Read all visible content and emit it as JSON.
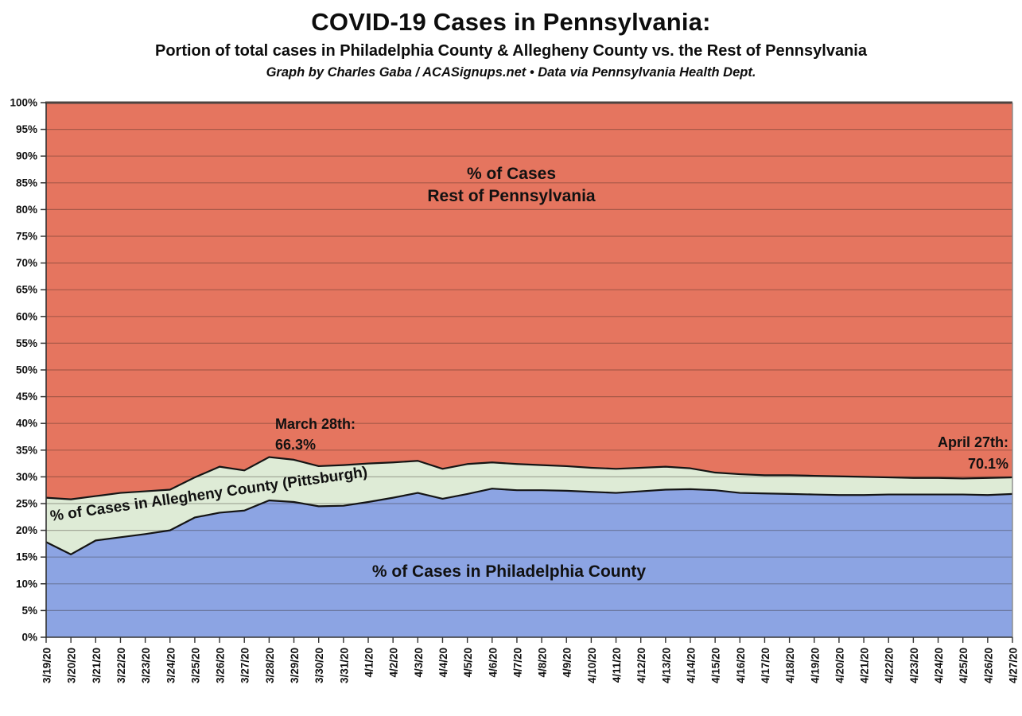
{
  "header": {
    "title": "COVID-19 Cases in Pennsylvania:",
    "subtitle": "Portion of total cases in Philadelphia County & Allegheny County vs. the Rest of Pennsylvania",
    "credit": "Graph by Charles Gaba / ACASignups.net  •  Data via Pennsylvania Health Dept."
  },
  "chart_data": {
    "type": "area",
    "stacked": true,
    "grid": true,
    "legend_position": "none (series labeled inside areas)",
    "ylim": [
      0,
      100
    ],
    "y_tick_step": 5,
    "y_tick_labels": [
      "0%",
      "5%",
      "10%",
      "15%",
      "20%",
      "25%",
      "30%",
      "35%",
      "40%",
      "45%",
      "50%",
      "55%",
      "60%",
      "65%",
      "70%",
      "75%",
      "80%",
      "85%",
      "90%",
      "95%",
      "100%"
    ],
    "x_tick_rotation": -90,
    "x": [
      "3/19/20",
      "3/20/20",
      "3/21/20",
      "3/22/20",
      "3/23/20",
      "3/24/20",
      "3/25/20",
      "3/26/20",
      "3/27/20",
      "3/28/20",
      "3/29/20",
      "3/30/20",
      "3/31/20",
      "4/1/20",
      "4/2/20",
      "4/3/20",
      "4/4/20",
      "4/5/20",
      "4/6/20",
      "4/7/20",
      "4/8/20",
      "4/9/20",
      "4/10/20",
      "4/11/20",
      "4/12/20",
      "4/13/20",
      "4/14/20",
      "4/15/20",
      "4/16/20",
      "4/17/20",
      "4/18/20",
      "4/19/20",
      "4/20/20",
      "4/21/20",
      "4/22/20",
      "4/23/20",
      "4/24/20",
      "4/25/20",
      "4/26/20",
      "4/27/20"
    ],
    "series": [
      {
        "name": "% of Cases in Philadelphia County",
        "color": "#8CA4E3",
        "values": [
          17.8,
          15.5,
          18.1,
          18.7,
          19.3,
          20.0,
          22.4,
          23.3,
          23.7,
          25.6,
          25.3,
          24.5,
          24.6,
          25.3,
          26.1,
          27.0,
          25.9,
          26.8,
          27.8,
          27.5,
          27.5,
          27.4,
          27.2,
          27.0,
          27.3,
          27.6,
          27.7,
          27.5,
          27.0,
          26.9,
          26.8,
          26.7,
          26.6,
          26.6,
          26.7,
          26.7,
          26.7,
          26.7,
          26.6,
          26.8
        ]
      },
      {
        "name": "% of Cases in Allegheny County (Pittsburgh)",
        "color": "#DEEBD6",
        "values": [
          8.3,
          10.3,
          8.3,
          8.3,
          8.0,
          7.6,
          7.5,
          8.6,
          7.5,
          8.1,
          7.9,
          7.5,
          7.6,
          7.2,
          6.6,
          6.0,
          5.6,
          5.6,
          4.9,
          4.9,
          4.7,
          4.6,
          4.5,
          4.5,
          4.4,
          4.3,
          3.9,
          3.3,
          3.5,
          3.4,
          3.5,
          3.5,
          3.5,
          3.4,
          3.2,
          3.1,
          3.1,
          3.0,
          3.2,
          3.1
        ]
      },
      {
        "name": "% of Cases Rest of Pennsylvania",
        "color": "#E5755F",
        "values": [
          73.9,
          74.2,
          73.6,
          73.0,
          72.7,
          72.4,
          70.1,
          68.1,
          68.8,
          66.3,
          66.8,
          68.0,
          67.8,
          67.5,
          67.3,
          67.0,
          68.5,
          67.6,
          67.3,
          67.6,
          67.8,
          68.0,
          68.3,
          68.5,
          68.3,
          68.1,
          68.4,
          69.2,
          69.5,
          69.7,
          69.7,
          69.8,
          69.9,
          70.0,
          70.1,
          70.2,
          70.2,
          70.3,
          70.2,
          70.1
        ]
      }
    ],
    "boundary_line_color": "#141414",
    "annotations": [
      {
        "id": "march-28",
        "line1": "March 28th:",
        "line2": "66.3%",
        "date": "3/28/20"
      },
      {
        "id": "april-27",
        "line1": "April 27th:",
        "line2": "70.1%",
        "date": "4/27/20"
      }
    ],
    "area_labels": {
      "rest_line1": "% of Cases",
      "rest_line2": "Rest of Pennsylvania",
      "allegheny": "% of Cases in Allegheny County (Pittsburgh)",
      "philadelphia": "% of Cases in Philadelphia County"
    }
  }
}
